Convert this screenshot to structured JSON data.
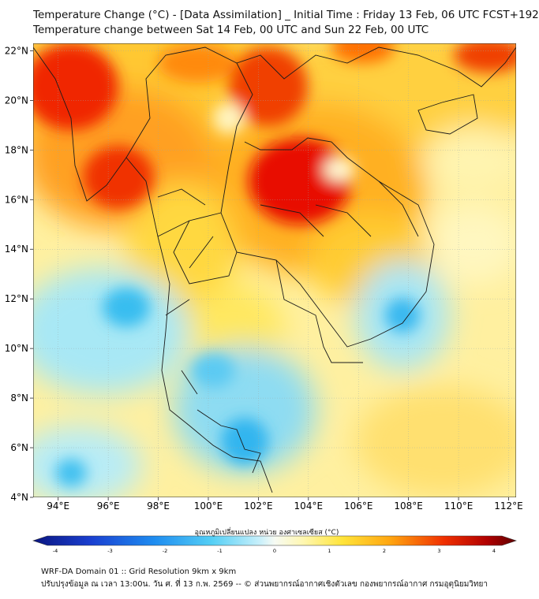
{
  "header": {
    "title_line1": "Temperature Change (°C) - [Data Assimilation] _ Initial Time : Friday 13 Feb, 06 UTC FCST+192",
    "title_line2": "Temperature change between Sat 14 Feb, 00 UTC and Sun 22 Feb, 00 UTC"
  },
  "map": {
    "lon_ticks": [
      "94°E",
      "96°E",
      "98°E",
      "100°E",
      "102°E",
      "104°E",
      "106°E",
      "108°E",
      "110°E",
      "112°E"
    ],
    "lat_ticks": [
      "22°N",
      "20°N",
      "18°N",
      "16°N",
      "14°N",
      "12°N",
      "10°N",
      "8°N",
      "6°N",
      "4°N"
    ],
    "lon_range": [
      93,
      112.3
    ],
    "lat_range": [
      4,
      22.3
    ],
    "grid": true,
    "colors": {
      "strong_warm": "#e60000",
      "warm": "#ff9900",
      "mild_warm": "#ffe020",
      "neutral": "#fff7b0",
      "cool": "#8ee0f5",
      "cold": "#2eb6f0",
      "border": "#1a1a1a"
    }
  },
  "colorbar": {
    "title": "อุณหภูมิเปลี่ยนแปลง หน่วย องศาเซลเซียส (°C)",
    "ticks": [
      "-4",
      "-3",
      "-2",
      "-1",
      "0",
      "1",
      "2",
      "3",
      "4"
    ],
    "range": [
      -4,
      4
    ]
  },
  "footer": {
    "line1": "WRF-DA Domain 01 :: Grid Resolution 9km x 9km",
    "line2": "ปรับปรุงข้อมูล ณ เวลา 13:00น. วัน ศ. ที่ 13 ก.พ. 2569 -- © ส่วนพยากรณ์อากาศเชิงตัวเลข กองพยากรณ์อากาศ กรมอุตุนิยมวิทยา"
  }
}
